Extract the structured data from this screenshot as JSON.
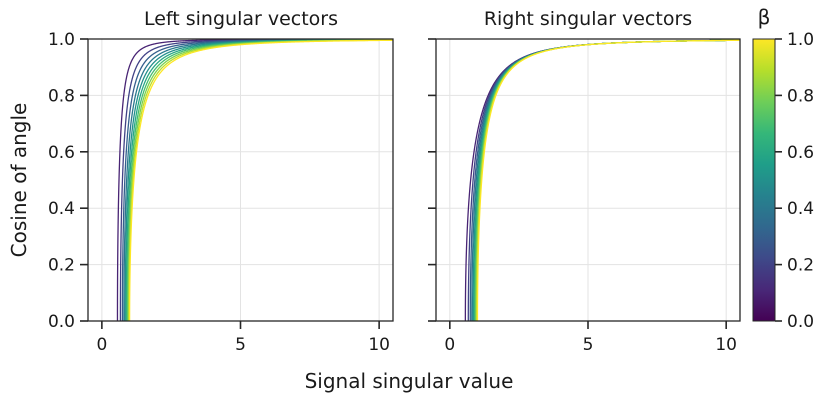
{
  "chart_data": {
    "type": "line",
    "xlabel": "Signal singular value",
    "ylabel": "Cosine of angle",
    "colorbar": {
      "label": "β",
      "range": [
        0,
        1
      ],
      "ticks": [
        0.0,
        0.2,
        0.4,
        0.6,
        0.8,
        1.0
      ],
      "tick_labels": [
        "0.0",
        "0.2",
        "0.4",
        "0.6",
        "0.8",
        "1.0"
      ],
      "colormap": "viridis"
    },
    "xlim": [
      -0.5,
      10.5
    ],
    "ylim": [
      0,
      1
    ],
    "xticks": [
      0,
      5,
      10
    ],
    "xtick_labels": [
      "0",
      "5",
      "10"
    ],
    "yticks": [
      0.0,
      0.2,
      0.4,
      0.6,
      0.8,
      1.0
    ],
    "ytick_labels": [
      "0.0",
      "0.2",
      "0.4",
      "0.6",
      "0.8",
      "1.0"
    ],
    "grid": true,
    "beta_values": [
      0.1,
      0.2,
      0.3,
      0.4,
      0.5,
      0.6,
      0.7,
      0.8,
      0.9,
      1.0
    ],
    "panels": [
      {
        "title": "Left singular vectors",
        "curve": "left",
        "description_of_curves": "cos = sqrt((1 - beta/s^4)/(1 + beta/s^2)) for s > beta^(1/4), else 0"
      },
      {
        "title": "Right singular vectors",
        "curve": "right",
        "description_of_curves": "cos = sqrt((1 - beta/s^4)/(1 + 1/s^2)) for s > beta^(1/4), else 0"
      }
    ],
    "colors": {
      "viridis_stops": [
        "#440154",
        "#482878",
        "#3e4989",
        "#31688e",
        "#26828e",
        "#1f9e89",
        "#35b779",
        "#6ece58",
        "#b5de2b",
        "#fde725"
      ]
    }
  }
}
